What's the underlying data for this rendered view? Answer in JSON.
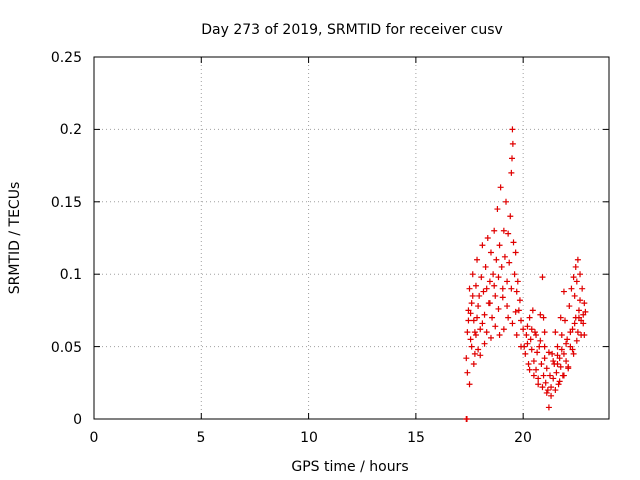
{
  "chart_data": {
    "type": "scatter",
    "title": "Day 273 of 2019, SRMTID for receiver cusv",
    "xlabel": "GPS time / hours",
    "ylabel": "SRMTID / TECUs",
    "xlim": [
      0,
      24
    ],
    "ylim": [
      0,
      0.25
    ],
    "xticks": [
      0,
      5,
      10,
      15,
      20
    ],
    "xtick_labels": [
      "0",
      "5",
      "10",
      "15",
      "20"
    ],
    "yticks": [
      0,
      0.05,
      0.1,
      0.15,
      0.2,
      0.25
    ],
    "ytick_labels": [
      "0",
      "0.05",
      "0.1",
      "0.15",
      "0.2",
      "0.25"
    ],
    "grid": true,
    "marker": "plus",
    "marker_color": "#e00000",
    "series": [
      {
        "name": "SRMTID",
        "points": [
          [
            17.35,
            0.0
          ],
          [
            17.38,
            0.0
          ],
          [
            17.35,
            0.042
          ],
          [
            17.4,
            0.06
          ],
          [
            17.45,
            0.075
          ],
          [
            17.5,
            0.09
          ],
          [
            17.55,
            0.055
          ],
          [
            17.6,
            0.08
          ],
          [
            17.65,
            0.1
          ],
          [
            17.7,
            0.068
          ],
          [
            17.75,
            0.045
          ],
          [
            17.8,
            0.092
          ],
          [
            17.85,
            0.11
          ],
          [
            17.9,
            0.078
          ],
          [
            17.95,
            0.085
          ],
          [
            18.0,
            0.062
          ],
          [
            18.05,
            0.098
          ],
          [
            18.1,
            0.12
          ],
          [
            18.15,
            0.088
          ],
          [
            18.2,
            0.072
          ],
          [
            18.25,
            0.105
          ],
          [
            18.3,
            0.09
          ],
          [
            18.35,
            0.125
          ],
          [
            18.4,
            0.08
          ],
          [
            18.45,
            0.095
          ],
          [
            18.5,
            0.115
          ],
          [
            18.55,
            0.07
          ],
          [
            18.6,
            0.1
          ],
          [
            18.65,
            0.13
          ],
          [
            18.7,
            0.085
          ],
          [
            18.75,
            0.11
          ],
          [
            18.8,
            0.145
          ],
          [
            18.85,
            0.098
          ],
          [
            18.9,
            0.12
          ],
          [
            18.95,
            0.16
          ],
          [
            19.0,
            0.105
          ],
          [
            19.05,
            0.09
          ],
          [
            19.1,
            0.13
          ],
          [
            19.15,
            0.112
          ],
          [
            19.2,
            0.15
          ],
          [
            19.25,
            0.095
          ],
          [
            19.3,
            0.128
          ],
          [
            19.35,
            0.108
          ],
          [
            19.4,
            0.14
          ],
          [
            19.45,
            0.17
          ],
          [
            19.5,
            0.2
          ],
          [
            19.52,
            0.19
          ],
          [
            19.48,
            0.18
          ],
          [
            19.55,
            0.122
          ],
          [
            19.6,
            0.1
          ],
          [
            19.65,
            0.115
          ],
          [
            19.7,
            0.088
          ],
          [
            19.75,
            0.095
          ],
          [
            19.8,
            0.075
          ],
          [
            19.85,
            0.082
          ],
          [
            19.9,
            0.068
          ],
          [
            17.4,
            0.032
          ],
          [
            17.5,
            0.024
          ],
          [
            17.6,
            0.05
          ],
          [
            17.7,
            0.038
          ],
          [
            17.8,
            0.058
          ],
          [
            17.9,
            0.048
          ],
          [
            18.0,
            0.044
          ],
          [
            18.1,
            0.066
          ],
          [
            18.2,
            0.052
          ],
          [
            18.3,
            0.06
          ],
          [
            18.5,
            0.056
          ],
          [
            18.7,
            0.064
          ],
          [
            18.9,
            0.058
          ],
          [
            19.1,
            0.062
          ],
          [
            19.3,
            0.07
          ],
          [
            19.5,
            0.066
          ],
          [
            19.7,
            0.058
          ],
          [
            19.9,
            0.05
          ],
          [
            17.45,
            0.068
          ],
          [
            17.55,
            0.073
          ],
          [
            17.65,
            0.085
          ],
          [
            17.75,
            0.06
          ],
          [
            17.85,
            0.07
          ],
          [
            18.45,
            0.08
          ],
          [
            18.65,
            0.092
          ],
          [
            18.85,
            0.076
          ],
          [
            19.05,
            0.084
          ],
          [
            19.25,
            0.078
          ],
          [
            19.45,
            0.09
          ],
          [
            19.65,
            0.074
          ],
          [
            20.0,
            0.062
          ],
          [
            20.05,
            0.05
          ],
          [
            20.1,
            0.045
          ],
          [
            20.15,
            0.058
          ],
          [
            20.2,
            0.052
          ],
          [
            20.25,
            0.038
          ],
          [
            20.3,
            0.07
          ],
          [
            20.35,
            0.055
          ],
          [
            20.4,
            0.048
          ],
          [
            20.45,
            0.075
          ],
          [
            20.5,
            0.04
          ],
          [
            20.55,
            0.06
          ],
          [
            20.6,
            0.034
          ],
          [
            20.65,
            0.046
          ],
          [
            20.7,
            0.028
          ],
          [
            20.75,
            0.05
          ],
          [
            20.8,
            0.072
          ],
          [
            20.85,
            0.038
          ],
          [
            20.9,
            0.098
          ],
          [
            20.95,
            0.03
          ],
          [
            21.0,
            0.042
          ],
          [
            21.05,
            0.025
          ],
          [
            21.1,
            0.035
          ],
          [
            21.15,
            0.02
          ],
          [
            21.2,
            0.008
          ],
          [
            21.25,
            0.03
          ],
          [
            21.3,
            0.022
          ],
          [
            21.35,
            0.045
          ],
          [
            21.4,
            0.028
          ],
          [
            21.45,
            0.038
          ],
          [
            21.5,
            0.06
          ],
          [
            21.55,
            0.032
          ],
          [
            21.6,
            0.05
          ],
          [
            21.65,
            0.024
          ],
          [
            21.7,
            0.042
          ],
          [
            21.75,
            0.036
          ],
          [
            21.8,
            0.058
          ],
          [
            21.85,
            0.03
          ],
          [
            21.9,
            0.045
          ],
          [
            21.95,
            0.068
          ],
          [
            22.0,
            0.04
          ],
          [
            22.05,
            0.055
          ],
          [
            22.1,
            0.035
          ],
          [
            22.15,
            0.078
          ],
          [
            22.2,
            0.05
          ],
          [
            22.25,
            0.09
          ],
          [
            22.3,
            0.062
          ],
          [
            22.35,
            0.045
          ],
          [
            22.4,
            0.085
          ],
          [
            22.45,
            0.07
          ],
          [
            22.5,
            0.095
          ],
          [
            22.55,
            0.06
          ],
          [
            22.6,
            0.075
          ],
          [
            22.65,
            0.082
          ],
          [
            22.7,
            0.068
          ],
          [
            22.75,
            0.09
          ],
          [
            22.8,
            0.072
          ],
          [
            22.85,
            0.08
          ],
          [
            20.2,
            0.064
          ],
          [
            20.4,
            0.062
          ],
          [
            20.6,
            0.058
          ],
          [
            20.8,
            0.054
          ],
          [
            21.0,
            0.05
          ],
          [
            21.2,
            0.046
          ],
          [
            21.4,
            0.04
          ],
          [
            21.6,
            0.044
          ],
          [
            21.8,
            0.048
          ],
          [
            22.0,
            0.052
          ],
          [
            22.2,
            0.06
          ],
          [
            22.4,
            0.066
          ],
          [
            22.6,
            0.07
          ],
          [
            22.8,
            0.066
          ],
          [
            20.3,
            0.034
          ],
          [
            20.5,
            0.03
          ],
          [
            20.7,
            0.024
          ],
          [
            20.9,
            0.022
          ],
          [
            21.1,
            0.018
          ],
          [
            21.3,
            0.016
          ],
          [
            21.5,
            0.02
          ],
          [
            21.7,
            0.026
          ],
          [
            21.9,
            0.03
          ],
          [
            22.1,
            0.036
          ],
          [
            22.3,
            0.048
          ],
          [
            22.5,
            0.054
          ],
          [
            22.7,
            0.058
          ],
          [
            22.55,
            0.11
          ],
          [
            22.65,
            0.1
          ],
          [
            22.45,
            0.105
          ],
          [
            22.35,
            0.098
          ],
          [
            21.9,
            0.088
          ],
          [
            21.0,
            0.06
          ],
          [
            20.95,
            0.07
          ],
          [
            21.75,
            0.07
          ],
          [
            21.6,
            0.038
          ],
          [
            22.85,
            0.058
          ],
          [
            22.9,
            0.074
          ]
        ]
      }
    ]
  }
}
